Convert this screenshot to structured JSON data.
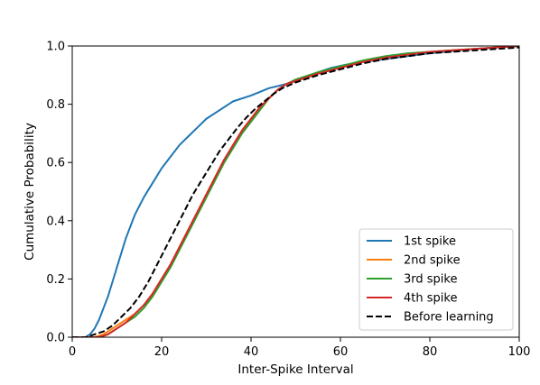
{
  "chart_data": {
    "type": "line",
    "xlabel": "Inter-Spike Interval",
    "ylabel": "Cumulative Probability",
    "xlim": [
      0,
      100
    ],
    "ylim": [
      0,
      1.0
    ],
    "xticks": [
      0,
      20,
      40,
      60,
      80,
      100
    ],
    "xtick_labels": [
      "0",
      "20",
      "40",
      "60",
      "80",
      "100"
    ],
    "yticks": [
      0,
      0.2,
      0.4,
      0.6,
      0.8,
      1.0
    ],
    "ytick_labels": [
      "0.0",
      "0.2",
      "0.4",
      "0.6",
      "0.8",
      "1.0"
    ],
    "grid": false,
    "legend_position": "lower-right",
    "series": [
      {
        "name": "1st spike",
        "color": "#1f77b4",
        "dash": "solid",
        "x": [
          0,
          3,
          4,
          5,
          6,
          7,
          8,
          9,
          10,
          11,
          12,
          13,
          14,
          16,
          18,
          20,
          22,
          24,
          26,
          28,
          30,
          33,
          36,
          40,
          44,
          48,
          52,
          55,
          58,
          61,
          65,
          70,
          75,
          80,
          90,
          100
        ],
        "y": [
          0,
          0,
          0.01,
          0.03,
          0.06,
          0.1,
          0.14,
          0.19,
          0.24,
          0.29,
          0.34,
          0.38,
          0.42,
          0.48,
          0.53,
          0.58,
          0.62,
          0.66,
          0.69,
          0.72,
          0.75,
          0.78,
          0.81,
          0.83,
          0.855,
          0.87,
          0.89,
          0.91,
          0.925,
          0.935,
          0.945,
          0.955,
          0.965,
          0.975,
          0.99,
          1.0
        ]
      },
      {
        "name": "2nd spike",
        "color": "#ff7f0e",
        "dash": "solid",
        "x": [
          0,
          5,
          7,
          8,
          10,
          12,
          14,
          16,
          18,
          20,
          22,
          24,
          26,
          28,
          30,
          32,
          34,
          36,
          38,
          40,
          42,
          44,
          46,
          48,
          50,
          55,
          60,
          65,
          70,
          75,
          80,
          90,
          100
        ],
        "y": [
          0,
          0,
          0.01,
          0.02,
          0.04,
          0.06,
          0.08,
          0.11,
          0.15,
          0.2,
          0.25,
          0.31,
          0.37,
          0.43,
          0.49,
          0.55,
          0.61,
          0.66,
          0.71,
          0.75,
          0.79,
          0.82,
          0.85,
          0.87,
          0.88,
          0.905,
          0.925,
          0.945,
          0.96,
          0.97,
          0.98,
          0.99,
          1.0
        ]
      },
      {
        "name": "3rd spike",
        "color": "#2ca02c",
        "dash": "solid",
        "x": [
          0,
          6,
          8,
          10,
          12,
          14,
          16,
          18,
          20,
          22,
          24,
          26,
          28,
          30,
          32,
          34,
          36,
          38,
          40,
          42,
          44,
          46,
          48,
          50,
          55,
          60,
          65,
          70,
          75,
          80,
          90,
          100
        ],
        "y": [
          0,
          0,
          0.01,
          0.03,
          0.05,
          0.07,
          0.1,
          0.14,
          0.19,
          0.24,
          0.3,
          0.36,
          0.42,
          0.48,
          0.54,
          0.6,
          0.65,
          0.7,
          0.74,
          0.78,
          0.82,
          0.85,
          0.87,
          0.885,
          0.91,
          0.93,
          0.95,
          0.965,
          0.975,
          0.98,
          0.99,
          1.0
        ]
      },
      {
        "name": "4th spike",
        "color": "#d62728",
        "dash": "solid",
        "x": [
          0,
          6,
          8,
          10,
          12,
          14,
          16,
          18,
          20,
          22,
          24,
          26,
          28,
          30,
          32,
          34,
          36,
          38,
          40,
          42,
          44,
          46,
          48,
          50,
          55,
          60,
          65,
          70,
          75,
          80,
          90,
          100
        ],
        "y": [
          0,
          0,
          0.01,
          0.03,
          0.05,
          0.08,
          0.11,
          0.15,
          0.2,
          0.25,
          0.31,
          0.37,
          0.43,
          0.49,
          0.55,
          0.61,
          0.66,
          0.71,
          0.75,
          0.79,
          0.82,
          0.85,
          0.87,
          0.88,
          0.905,
          0.925,
          0.945,
          0.96,
          0.97,
          0.98,
          0.99,
          1.0
        ]
      },
      {
        "name": "Before learning",
        "color": "#000000",
        "dash": "dashed",
        "x": [
          0,
          3,
          5,
          7,
          9,
          11,
          13,
          15,
          17,
          19,
          21,
          23,
          25,
          27,
          29,
          31,
          33,
          35,
          37,
          39,
          41,
          43,
          45,
          47,
          50,
          55,
          60,
          65,
          70,
          75,
          80,
          90,
          100
        ],
        "y": [
          0,
          0,
          0.01,
          0.02,
          0.04,
          0.07,
          0.1,
          0.14,
          0.19,
          0.25,
          0.31,
          0.37,
          0.43,
          0.49,
          0.54,
          0.59,
          0.64,
          0.68,
          0.72,
          0.755,
          0.785,
          0.81,
          0.835,
          0.855,
          0.875,
          0.9,
          0.92,
          0.94,
          0.955,
          0.965,
          0.975,
          0.985,
          0.995
        ]
      }
    ]
  }
}
